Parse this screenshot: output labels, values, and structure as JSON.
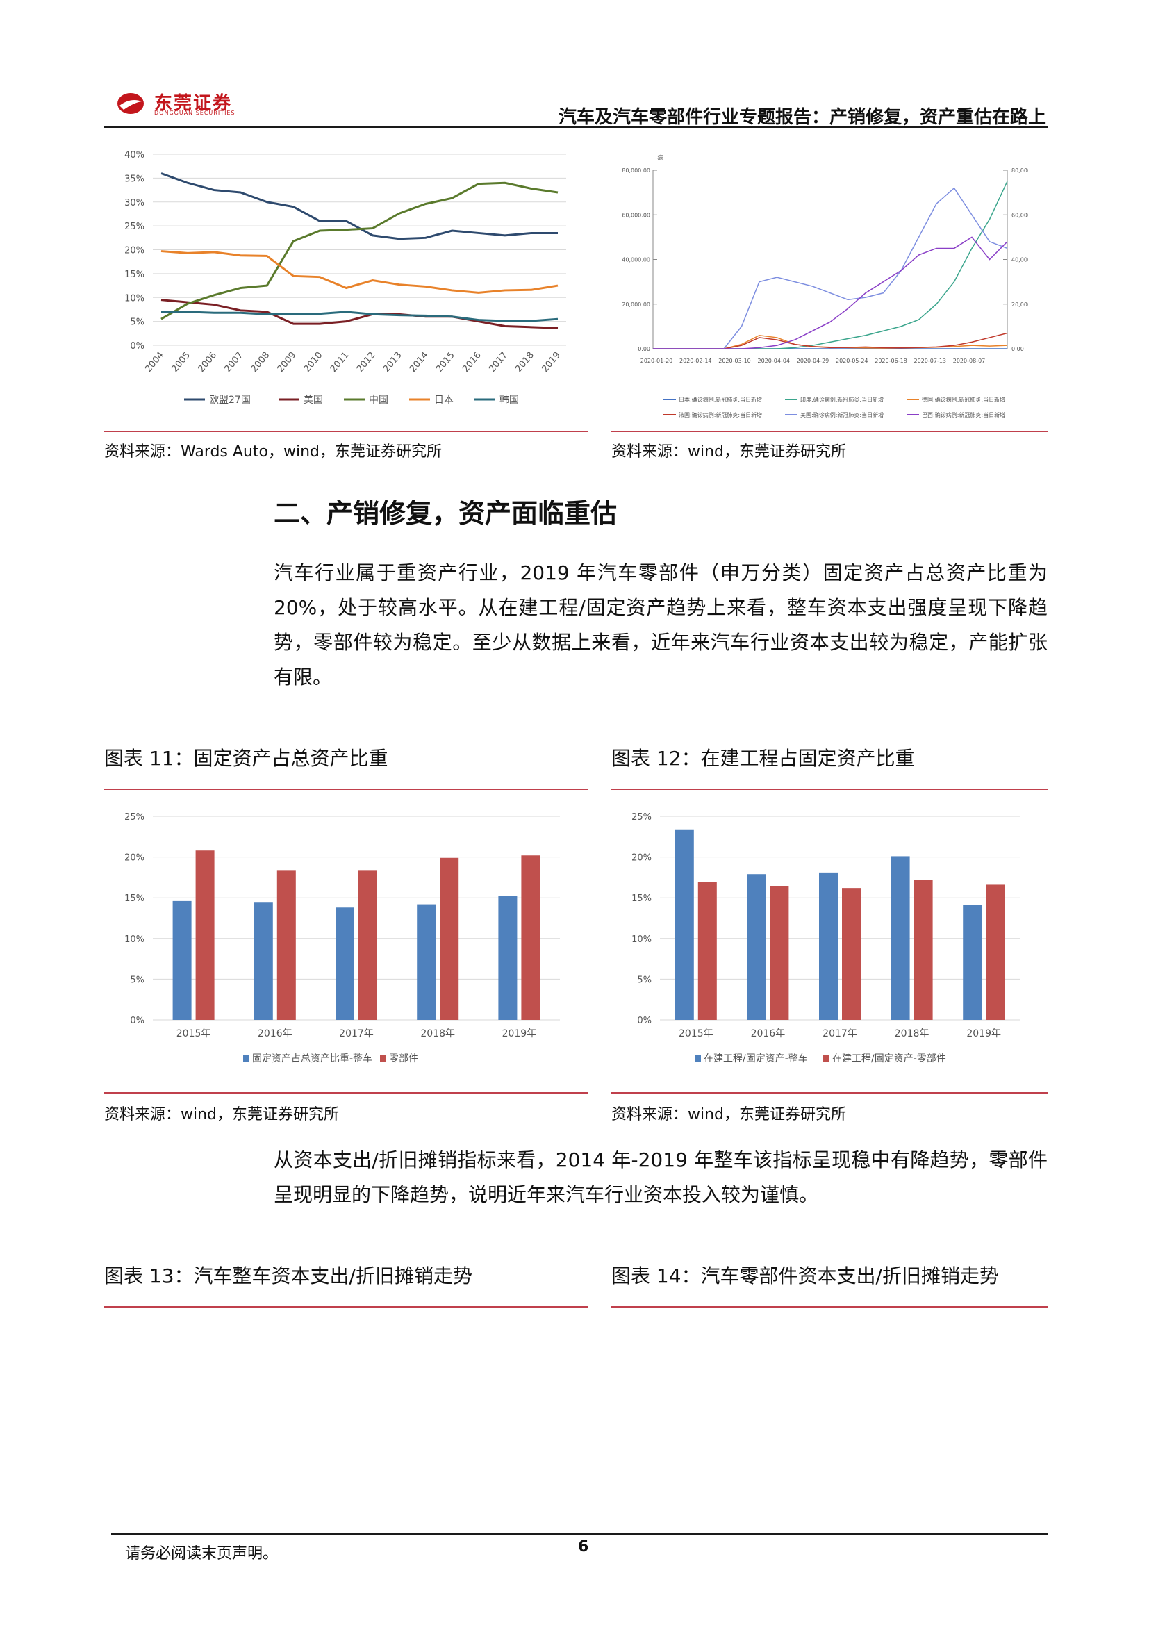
{
  "header": {
    "logo_cn": "东莞证券",
    "logo_en": "DONGGUAN SECURITIES",
    "title": "汽车及汽车零部件行业专题报告：产销修复，资产重估在路上"
  },
  "figures_top": {
    "left_source": "资料来源：Wards Auto，wind，东莞证券研究所",
    "right_source": "资料来源：wind，东莞证券研究所"
  },
  "section": {
    "heading": "二、产销修复，资产面临重估",
    "para1": "汽车行业属于重资产行业，2019 年汽车零部件（申万分类）固定资产占总资产比重为20%，处于较高水平。从在建工程/固定资产趋势上来看，整车资本支出强度呈现下降趋势，零部件较为稳定。至少从数据上来看，近年来汽车行业资本支出较为稳定，产能扩张有限。",
    "para2": "从资本支出/折旧摊销指标来看，2014 年-2019 年整车该指标呈现稳中有降趋势，零部件呈现明显的下降趋势，说明近年来汽车行业资本投入较为谨慎。"
  },
  "fig11": {
    "title": "图表 11：固定资产占总资产比重",
    "source": "资料来源：wind，东莞证券研究所"
  },
  "fig12": {
    "title": "图表 12：在建工程占固定资产比重",
    "source": "资料来源：wind，东莞证券研究所"
  },
  "fig13": {
    "title": "图表 13：汽车整车资本支出/折旧摊销走势"
  },
  "fig14": {
    "title": "图表 14：汽车零部件资本支出/折旧摊销走势"
  },
  "footer": {
    "disclaimer": "请务必阅读末页声明。",
    "page": "6"
  },
  "chart_data": [
    {
      "type": "line",
      "x": [
        "2004",
        "2005",
        "2006",
        "2007",
        "2008",
        "2009",
        "2010",
        "2011",
        "2012",
        "2013",
        "2014",
        "2015",
        "2016",
        "2017",
        "2018",
        "2019"
      ],
      "ylim": [
        0,
        40
      ],
      "yticks": [
        "0%",
        "5%",
        "10%",
        "15%",
        "20%",
        "25%",
        "30%",
        "35%",
        "40%"
      ],
      "legend_position": "bottom",
      "series": [
        {
          "name": "欧盟27国",
          "color": "#2e4a6e",
          "values": [
            36,
            34,
            32.5,
            32,
            30,
            29,
            26,
            26,
            23,
            22.3,
            22.5,
            24,
            23.5,
            23,
            23.5,
            23.5
          ]
        },
        {
          "name": "美国",
          "color": "#7a1f24",
          "values": [
            9.5,
            9,
            8.5,
            7.3,
            7,
            4.5,
            4.5,
            5,
            6.5,
            6.5,
            6,
            6,
            5,
            4,
            3.8,
            3.6
          ]
        },
        {
          "name": "中国",
          "color": "#5a7a2c",
          "values": [
            5.5,
            8.7,
            10.5,
            12,
            12.5,
            21.8,
            24,
            24.2,
            24.5,
            27.6,
            29.6,
            30.8,
            33.8,
            34,
            32.8,
            32
          ]
        },
        {
          "name": "日本",
          "color": "#e8822a",
          "values": [
            19.7,
            19.3,
            19.5,
            18.8,
            18.7,
            14.5,
            14.3,
            12,
            13.6,
            12.7,
            12.3,
            11.5,
            11,
            11.5,
            11.6,
            12.5
          ]
        },
        {
          "name": "韩国",
          "color": "#2a6b7c",
          "values": [
            7,
            7,
            6.8,
            6.8,
            6.5,
            6.5,
            6.6,
            7,
            6.5,
            6.3,
            6.2,
            6,
            5.3,
            5.1,
            5.1,
            5.5
          ]
        }
      ]
    },
    {
      "type": "line",
      "x_tick_labels": [
        "2020-01-20",
        "2020-02-14",
        "2020-03-10",
        "2020-04-04",
        "2020-04-29",
        "2020-05-24",
        "2020-06-18",
        "2020-07-13",
        "2020-08-07"
      ],
      "ylim": [
        0,
        80000
      ],
      "y_tick_labels": [
        "0.00",
        "20,000.00",
        "40,000.00",
        "60,000.00",
        "80,000.00"
      ],
      "left_axis_label": "病",
      "legend_position": "bottom",
      "series": [
        {
          "name": "日本:确诊病例:新冠肺炎:当日新增",
          "color": "#4472c4",
          "values": [
            0,
            0,
            0,
            0,
            0,
            0,
            0,
            0,
            0,
            0,
            0,
            0,
            0,
            0,
            0,
            0,
            0,
            0,
            0,
            0,
            0
          ]
        },
        {
          "name": "印度:确诊病例:新冠肺炎:当日新增",
          "color": "#3aa58c",
          "values": [
            0,
            0,
            0,
            0,
            0,
            0,
            0,
            0,
            500,
            1500,
            3000,
            4500,
            6000,
            8000,
            10000,
            13000,
            20000,
            30000,
            45000,
            58000,
            75000
          ]
        },
        {
          "name": "德国:确诊病例:新冠肺炎:当日新增",
          "color": "#e8822a",
          "values": [
            0,
            0,
            0,
            0,
            0,
            2000,
            6000,
            5000,
            2000,
            1000,
            700,
            500,
            400,
            300,
            400,
            500,
            700,
            1000,
            1500,
            1200,
            1500
          ]
        },
        {
          "name": "法国:确诊病例:新冠肺炎:当日新增",
          "color": "#c0392b",
          "values": [
            0,
            0,
            0,
            0,
            0,
            1500,
            5000,
            4000,
            2000,
            1000,
            500,
            600,
            800,
            500,
            400,
            600,
            800,
            1500,
            3000,
            5000,
            7000
          ]
        },
        {
          "name": "美国:确诊病例:新冠肺炎:当日新增",
          "color": "#7d8ee0",
          "values": [
            0,
            0,
            0,
            0,
            0,
            10000,
            30000,
            32000,
            30000,
            28000,
            25000,
            22000,
            23000,
            25000,
            35000,
            50000,
            65000,
            72000,
            60000,
            48000,
            45000
          ]
        },
        {
          "name": "巴西:确诊病例:新冠肺炎:当日新增",
          "color": "#8a3fc7",
          "values": [
            0,
            0,
            0,
            0,
            0,
            0,
            500,
            1500,
            4000,
            8000,
            12000,
            18000,
            25000,
            30000,
            35000,
            42000,
            45000,
            45000,
            50000,
            40000,
            48000
          ]
        }
      ]
    },
    {
      "type": "bar",
      "categories": [
        "2015年",
        "2016年",
        "2017年",
        "2018年",
        "2019年"
      ],
      "ylim": [
        0,
        25
      ],
      "yticks": [
        "0%",
        "5%",
        "10%",
        "15%",
        "20%",
        "25%"
      ],
      "legend_position": "bottom",
      "series": [
        {
          "name": "固定资产占总资产比重-整车",
          "color": "#4f81bd",
          "values": [
            14.6,
            14.4,
            13.8,
            14.2,
            15.2
          ]
        },
        {
          "name": "零部件",
          "color": "#c0504d",
          "values": [
            20.8,
            18.4,
            18.4,
            19.9,
            20.2
          ]
        }
      ]
    },
    {
      "type": "bar",
      "categories": [
        "2015年",
        "2016年",
        "2017年",
        "2018年",
        "2019年"
      ],
      "ylim": [
        0,
        25
      ],
      "yticks": [
        "0%",
        "5%",
        "10%",
        "15%",
        "20%",
        "25%"
      ],
      "legend_position": "bottom",
      "series": [
        {
          "name": "在建工程/固定资产-整车",
          "color": "#4f81bd",
          "values": [
            23.4,
            17.9,
            18.1,
            20.1,
            14.1
          ]
        },
        {
          "name": "在建工程/固定资产-零部件",
          "color": "#c0504d",
          "values": [
            16.9,
            16.4,
            16.2,
            17.2,
            16.6
          ]
        }
      ]
    }
  ]
}
